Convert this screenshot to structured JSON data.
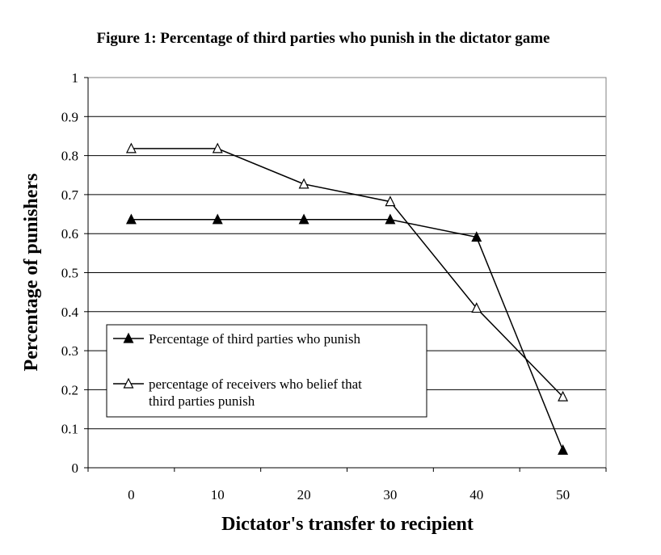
{
  "chart_data": {
    "type": "line",
    "title": "Figure 1: Percentage of third parties who punish in the dictator game",
    "xlabel": "Dictator's transfer to recipient",
    "ylabel": "Percentage of punishers",
    "categories": [
      "0",
      "10",
      "20",
      "30",
      "40",
      "50"
    ],
    "ylim": [
      0,
      1
    ],
    "yticks": [
      "0",
      "0.1",
      "0.2",
      "0.3",
      "0.4",
      "0.5",
      "0.6",
      "0.7",
      "0.8",
      "0.9",
      "1"
    ],
    "grid": "horizontal",
    "legend_position": "lower-left",
    "series": [
      {
        "name": "Percentage of third parties who punish",
        "marker": "filled-triangle",
        "color": "#000000",
        "values": [
          0.636,
          0.636,
          0.636,
          0.636,
          0.591,
          0.045
        ]
      },
      {
        "name": "percentage of receivers who belief that third parties punish",
        "name_lines": [
          "percentage of receivers who belief that",
          "third parties punish"
        ],
        "marker": "open-triangle",
        "color": "#000000",
        "values": [
          0.818,
          0.818,
          0.727,
          0.682,
          0.409,
          0.182
        ]
      }
    ]
  }
}
